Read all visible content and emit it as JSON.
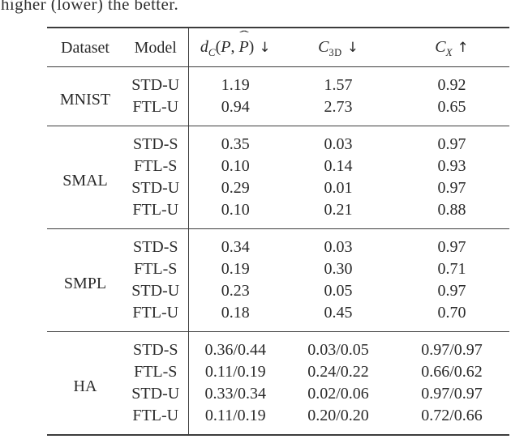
{
  "caption_fragment": "higher (lower) the better.",
  "table": {
    "header": {
      "dataset": "Dataset",
      "model": "Model",
      "m1": {
        "d": "d",
        "sub": "C",
        "open": "(",
        "p1": "P",
        "comma": ", ",
        "hat": "ˆ",
        "p2": "P",
        "close": ")",
        "arrow": "↓"
      },
      "m2": {
        "cal": "C",
        "sub": "3D",
        "arrow": "↓"
      },
      "m3": {
        "cal": "C",
        "sub": "X",
        "arrow": "↑"
      }
    },
    "groups": [
      {
        "dataset": "MNIST",
        "rows": [
          {
            "model": "STD-U",
            "dc": "1.19",
            "c3d": "1.57",
            "cx": "0.92"
          },
          {
            "model": "FTL-U",
            "dc": "0.94",
            "c3d": "2.73",
            "cx": "0.65"
          }
        ]
      },
      {
        "dataset": "SMAL",
        "rows": [
          {
            "model": "STD-S",
            "dc": "0.35",
            "c3d": "0.03",
            "cx": "0.97"
          },
          {
            "model": "FTL-S",
            "dc": "0.10",
            "c3d": "0.14",
            "cx": "0.93"
          },
          {
            "model": "STD-U",
            "dc": "0.29",
            "c3d": "0.01",
            "cx": "0.97"
          },
          {
            "model": "FTL-U",
            "dc": "0.10",
            "c3d": "0.21",
            "cx": "0.88"
          }
        ]
      },
      {
        "dataset": "SMPL",
        "rows": [
          {
            "model": "STD-S",
            "dc": "0.34",
            "c3d": "0.03",
            "cx": "0.97"
          },
          {
            "model": "FTL-S",
            "dc": "0.19",
            "c3d": "0.30",
            "cx": "0.71"
          },
          {
            "model": "STD-U",
            "dc": "0.23",
            "c3d": "0.05",
            "cx": "0.97"
          },
          {
            "model": "FTL-U",
            "dc": "0.18",
            "c3d": "0.45",
            "cx": "0.70"
          }
        ]
      },
      {
        "dataset": "HA",
        "rows": [
          {
            "model": "STD-S",
            "dc": "0.36/0.44",
            "c3d": "0.03/0.05",
            "cx": "0.97/0.97"
          },
          {
            "model": "FTL-S",
            "dc": "0.11/0.19",
            "c3d": "0.24/0.22",
            "cx": "0.66/0.62"
          },
          {
            "model": "STD-U",
            "dc": "0.33/0.34",
            "c3d": "0.02/0.06",
            "cx": "0.97/0.97"
          },
          {
            "model": "FTL-U",
            "dc": "0.11/0.19",
            "c3d": "0.20/0.20",
            "cx": "0.72/0.66"
          }
        ]
      }
    ]
  }
}
